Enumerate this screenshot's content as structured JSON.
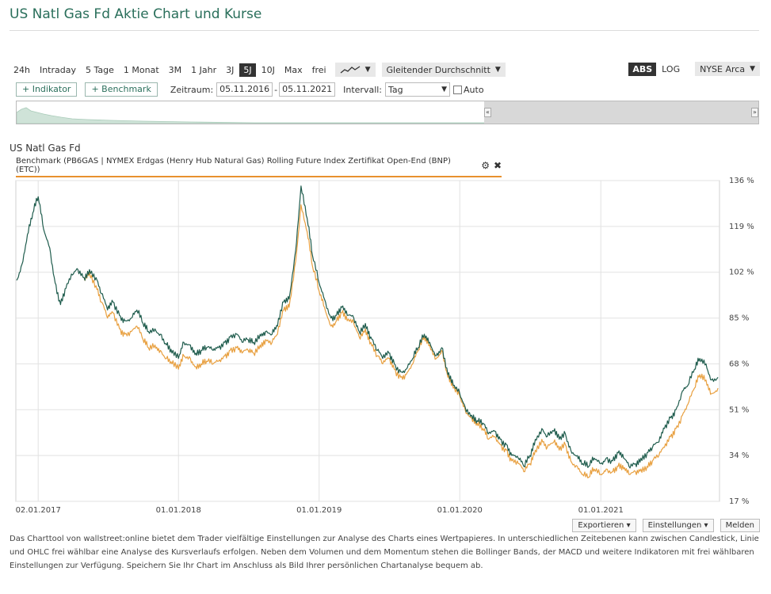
{
  "page": {
    "title": "US Natl Gas Fd Aktie Chart und Kurse"
  },
  "toolbar": {
    "ranges": [
      "24h",
      "Intraday",
      "5 Tage",
      "1 Monat",
      "3M",
      "1 Jahr",
      "3J",
      "5J",
      "10J",
      "Max",
      "frei"
    ],
    "active_range": "5J",
    "chart_type_icon": "line-chart-icon",
    "indicator_dropdown": "Gleitender Durchschnitt",
    "scale_abs": "ABS",
    "scale_log": "LOG",
    "exchange": "NYSE Arca"
  },
  "controls": {
    "indikator_button": "+ Indikator",
    "benchmark_button": "+ Benchmark",
    "zeitraum_label": "Zeitraum:",
    "date_from": "05.11.2016",
    "date_separator": "-",
    "date_to": "05.11.2021",
    "intervall_label": "Intervall:",
    "intervall_value": "Tag",
    "auto_label": "Auto"
  },
  "chart_header": {
    "instrument": "US Natl Gas Fd",
    "benchmark": "Benchmark (PB6GAS | NYMEX Erdgas (Henry Hub Natural Gas) Rolling Future Index Zertifikat Open-End (BNP) (ETC))"
  },
  "chart_data": {
    "type": "line",
    "title": "US Natl Gas Fd",
    "xlabel": "",
    "ylabel": "",
    "x_tick_labels": [
      "02.01.2017",
      "01.01.2018",
      "01.01.2019",
      "01.01.2020",
      "01.01.2021"
    ],
    "y_tick_labels": [
      "136 %",
      "119 %",
      "102 %",
      "85 %",
      "68 %",
      "51 %",
      "34 %",
      "17 %"
    ],
    "ylim": [
      17,
      136
    ],
    "xlim": [
      "2016-11-05",
      "2021-11-05"
    ],
    "grid": true,
    "colors": {
      "instrument": "#1f5c4d",
      "benchmark": "#e8a040"
    },
    "series": [
      {
        "name": "US Natl Gas Fd",
        "color": "#1f5c4d",
        "points": [
          [
            "2016-11-07",
            99
          ],
          [
            "2016-11-21",
            105
          ],
          [
            "2016-12-05",
            116
          ],
          [
            "2016-12-19",
            124
          ],
          [
            "2017-01-02",
            130
          ],
          [
            "2017-01-16",
            118
          ],
          [
            "2017-02-01",
            111
          ],
          [
            "2017-02-15",
            98
          ],
          [
            "2017-03-01",
            90
          ],
          [
            "2017-03-15",
            96
          ],
          [
            "2017-04-01",
            101
          ],
          [
            "2017-04-15",
            103
          ],
          [
            "2017-05-01",
            100
          ],
          [
            "2017-05-15",
            103
          ],
          [
            "2017-06-01",
            100
          ],
          [
            "2017-06-15",
            94
          ],
          [
            "2017-07-01",
            88
          ],
          [
            "2017-07-15",
            91
          ],
          [
            "2017-08-01",
            86
          ],
          [
            "2017-08-15",
            84
          ],
          [
            "2017-09-01",
            85
          ],
          [
            "2017-09-15",
            88
          ],
          [
            "2017-10-01",
            83
          ],
          [
            "2017-10-15",
            80
          ],
          [
            "2017-11-01",
            81
          ],
          [
            "2017-11-15",
            79
          ],
          [
            "2017-12-01",
            75
          ],
          [
            "2017-12-15",
            72
          ],
          [
            "2018-01-01",
            70
          ],
          [
            "2018-01-15",
            76
          ],
          [
            "2018-02-01",
            75
          ],
          [
            "2018-02-15",
            72
          ],
          [
            "2018-03-01",
            73
          ],
          [
            "2018-03-15",
            74
          ],
          [
            "2018-04-01",
            73
          ],
          [
            "2018-04-15",
            74
          ],
          [
            "2018-05-01",
            76
          ],
          [
            "2018-05-15",
            78
          ],
          [
            "2018-06-01",
            79
          ],
          [
            "2018-06-15",
            76
          ],
          [
            "2018-07-01",
            77
          ],
          [
            "2018-07-15",
            76
          ],
          [
            "2018-08-01",
            79
          ],
          [
            "2018-08-15",
            80
          ],
          [
            "2018-09-01",
            79
          ],
          [
            "2018-09-15",
            82
          ],
          [
            "2018-10-01",
            91
          ],
          [
            "2018-10-15",
            92
          ],
          [
            "2018-11-01",
            110
          ],
          [
            "2018-11-15",
            134
          ],
          [
            "2018-12-01",
            122
          ],
          [
            "2018-12-15",
            108
          ],
          [
            "2019-01-01",
            98
          ],
          [
            "2019-01-15",
            92
          ],
          [
            "2019-02-01",
            85
          ],
          [
            "2019-02-15",
            86
          ],
          [
            "2019-03-01",
            89
          ],
          [
            "2019-03-15",
            86
          ],
          [
            "2019-04-01",
            85
          ],
          [
            "2019-04-15",
            80
          ],
          [
            "2019-05-01",
            83
          ],
          [
            "2019-05-15",
            78
          ],
          [
            "2019-06-01",
            73
          ],
          [
            "2019-06-15",
            70
          ],
          [
            "2019-07-01",
            72
          ],
          [
            "2019-07-15",
            68
          ],
          [
            "2019-08-01",
            65
          ],
          [
            "2019-08-15",
            66
          ],
          [
            "2019-09-01",
            70
          ],
          [
            "2019-09-15",
            74
          ],
          [
            "2019-10-01",
            79
          ],
          [
            "2019-10-15",
            76
          ],
          [
            "2019-11-01",
            71
          ],
          [
            "2019-11-15",
            74
          ],
          [
            "2019-12-01",
            64
          ],
          [
            "2019-12-15",
            60
          ],
          [
            "2020-01-01",
            57
          ],
          [
            "2020-01-15",
            52
          ],
          [
            "2020-02-01",
            49
          ],
          [
            "2020-02-15",
            47
          ],
          [
            "2020-03-01",
            46
          ],
          [
            "2020-03-15",
            42
          ],
          [
            "2020-04-01",
            43
          ],
          [
            "2020-04-15",
            40
          ],
          [
            "2020-05-01",
            38
          ],
          [
            "2020-05-15",
            34
          ],
          [
            "2020-06-01",
            33
          ],
          [
            "2020-06-15",
            30
          ],
          [
            "2020-07-01",
            34
          ],
          [
            "2020-07-15",
            40
          ],
          [
            "2020-08-01",
            44
          ],
          [
            "2020-08-15",
            41
          ],
          [
            "2020-09-01",
            43
          ],
          [
            "2020-09-15",
            40
          ],
          [
            "2020-10-01",
            42
          ],
          [
            "2020-10-15",
            36
          ],
          [
            "2020-11-01",
            34
          ],
          [
            "2020-11-15",
            31
          ],
          [
            "2020-12-01",
            30
          ],
          [
            "2020-12-15",
            33
          ],
          [
            "2021-01-01",
            31
          ],
          [
            "2021-01-15",
            33
          ],
          [
            "2021-02-01",
            32
          ],
          [
            "2021-02-15",
            35
          ],
          [
            "2021-03-01",
            33
          ],
          [
            "2021-03-15",
            30
          ],
          [
            "2021-04-01",
            31
          ],
          [
            "2021-04-15",
            33
          ],
          [
            "2021-05-01",
            35
          ],
          [
            "2021-05-15",
            37
          ],
          [
            "2021-06-01",
            39
          ],
          [
            "2021-06-15",
            44
          ],
          [
            "2021-07-01",
            48
          ],
          [
            "2021-07-15",
            51
          ],
          [
            "2021-08-01",
            58
          ],
          [
            "2021-08-15",
            60
          ],
          [
            "2021-09-01",
            66
          ],
          [
            "2021-09-15",
            70
          ],
          [
            "2021-10-01",
            68
          ],
          [
            "2021-10-15",
            62
          ],
          [
            "2021-11-01",
            63
          ]
        ]
      },
      {
        "name": "Benchmark",
        "color": "#e8a040",
        "points": [
          [
            "2017-05-01",
            100
          ],
          [
            "2017-05-15",
            102
          ],
          [
            "2017-06-01",
            97
          ],
          [
            "2017-06-15",
            91
          ],
          [
            "2017-07-01",
            85
          ],
          [
            "2017-07-15",
            87
          ],
          [
            "2017-08-01",
            81
          ],
          [
            "2017-08-15",
            79
          ],
          [
            "2017-09-01",
            80
          ],
          [
            "2017-09-15",
            82
          ],
          [
            "2017-10-01",
            77
          ],
          [
            "2017-10-15",
            74
          ],
          [
            "2017-11-01",
            75
          ],
          [
            "2017-11-15",
            73
          ],
          [
            "2017-12-01",
            70
          ],
          [
            "2017-12-15",
            68
          ],
          [
            "2018-01-01",
            66
          ],
          [
            "2018-01-15",
            71
          ],
          [
            "2018-02-01",
            70
          ],
          [
            "2018-02-15",
            67
          ],
          [
            "2018-03-01",
            68
          ],
          [
            "2018-03-15",
            69
          ],
          [
            "2018-04-01",
            68
          ],
          [
            "2018-04-15",
            69
          ],
          [
            "2018-05-01",
            71
          ],
          [
            "2018-05-15",
            73
          ],
          [
            "2018-06-01",
            74
          ],
          [
            "2018-06-15",
            72
          ],
          [
            "2018-07-01",
            73
          ],
          [
            "2018-07-15",
            72
          ],
          [
            "2018-08-01",
            75
          ],
          [
            "2018-08-15",
            77
          ],
          [
            "2018-09-01",
            76
          ],
          [
            "2018-09-15",
            79
          ],
          [
            "2018-10-01",
            88
          ],
          [
            "2018-10-15",
            89
          ],
          [
            "2018-11-01",
            106
          ],
          [
            "2018-11-15",
            127
          ],
          [
            "2018-12-01",
            117
          ],
          [
            "2018-12-15",
            104
          ],
          [
            "2019-01-01",
            95
          ],
          [
            "2019-01-15",
            89
          ],
          [
            "2019-02-01",
            82
          ],
          [
            "2019-02-15",
            84
          ],
          [
            "2019-03-01",
            87
          ],
          [
            "2019-03-15",
            84
          ],
          [
            "2019-04-01",
            83
          ],
          [
            "2019-04-15",
            78
          ],
          [
            "2019-05-01",
            81
          ],
          [
            "2019-05-15",
            76
          ],
          [
            "2019-06-01",
            71
          ],
          [
            "2019-06-15",
            68
          ],
          [
            "2019-07-01",
            70
          ],
          [
            "2019-07-15",
            66
          ],
          [
            "2019-08-01",
            63
          ],
          [
            "2019-08-15",
            64
          ],
          [
            "2019-09-01",
            68
          ],
          [
            "2019-09-15",
            73
          ],
          [
            "2019-10-01",
            78
          ],
          [
            "2019-10-15",
            75
          ],
          [
            "2019-11-01",
            70
          ],
          [
            "2019-11-15",
            73
          ],
          [
            "2019-12-01",
            63
          ],
          [
            "2019-12-15",
            59
          ],
          [
            "2020-01-01",
            56
          ],
          [
            "2020-01-15",
            51
          ],
          [
            "2020-02-01",
            48
          ],
          [
            "2020-02-15",
            46
          ],
          [
            "2020-03-01",
            44
          ],
          [
            "2020-03-15",
            40
          ],
          [
            "2020-04-01",
            41
          ],
          [
            "2020-04-15",
            38
          ],
          [
            "2020-05-01",
            36
          ],
          [
            "2020-05-15",
            32
          ],
          [
            "2020-06-01",
            31
          ],
          [
            "2020-06-15",
            28
          ],
          [
            "2020-07-01",
            31
          ],
          [
            "2020-07-15",
            36
          ],
          [
            "2020-08-01",
            40
          ],
          [
            "2020-08-15",
            37
          ],
          [
            "2020-09-01",
            39
          ],
          [
            "2020-09-15",
            36
          ],
          [
            "2020-10-01",
            38
          ],
          [
            "2020-10-15",
            32
          ],
          [
            "2020-11-01",
            30
          ],
          [
            "2020-11-15",
            27
          ],
          [
            "2020-12-01",
            26
          ],
          [
            "2020-12-15",
            29
          ],
          [
            "2021-01-01",
            27
          ],
          [
            "2021-01-15",
            29
          ],
          [
            "2021-02-01",
            28
          ],
          [
            "2021-02-15",
            30
          ],
          [
            "2021-03-01",
            29
          ],
          [
            "2021-03-15",
            27
          ],
          [
            "2021-04-01",
            28
          ],
          [
            "2021-04-15",
            29
          ],
          [
            "2021-05-01",
            30
          ],
          [
            "2021-05-15",
            32
          ],
          [
            "2021-06-01",
            34
          ],
          [
            "2021-06-15",
            37
          ],
          [
            "2021-07-01",
            41
          ],
          [
            "2021-07-15",
            44
          ],
          [
            "2021-08-01",
            49
          ],
          [
            "2021-08-15",
            53
          ],
          [
            "2021-09-01",
            59
          ],
          [
            "2021-09-15",
            64
          ],
          [
            "2021-10-01",
            62
          ],
          [
            "2021-10-15",
            57
          ],
          [
            "2021-11-01",
            59
          ]
        ]
      }
    ]
  },
  "footer": {
    "export_button": "Exportieren ▾",
    "settings_button": "Einstellungen ▾",
    "report_button": "Melden",
    "description": "Das Charttool von wallstreet:online bietet dem Trader vielfältige Einstellungen zur Analyse des Charts eines Wertpapieres. In unterschiedlichen Zeitebenen kann zwischen Candlestick, Linie und OHLC frei wählbar eine Analyse des Kursverlaufs erfolgen. Neben dem Volumen und dem Momentum stehen die Bollinger Bands, der MACD und weitere Indikatoren mit frei wählbaren Einstellungen zur Verfügung. Speichern Sie Ihr Chart im Anschluss als Bild Ihrer persönlichen Chartanalyse bequem ab."
  }
}
